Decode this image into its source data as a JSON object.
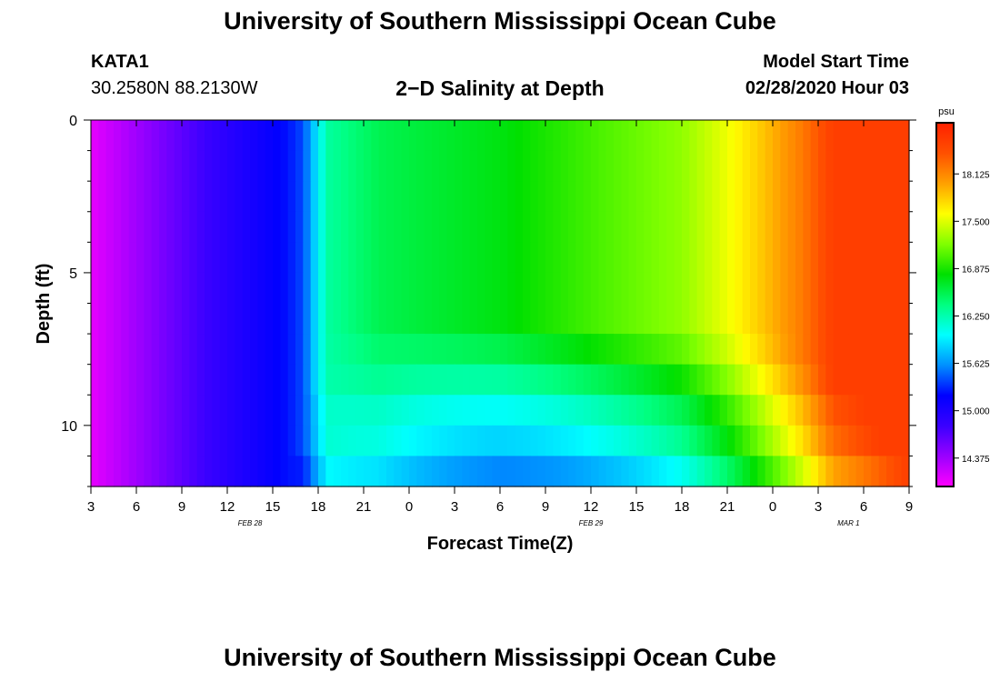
{
  "header": {
    "title": "University of Southern Mississippi Ocean Cube",
    "station": "KATA1",
    "coords": "30.2580N 88.2130W",
    "subtitle": "2−D Salinity at Depth",
    "model_label": "Model Start Time",
    "model_time": "02/28/2020 Hour 03"
  },
  "footer": {
    "title": "University of Southern Mississippi Ocean Cube"
  },
  "colors": {
    "scale": [
      "#ff00ff",
      "#9a00ff",
      "#3a00ff",
      "#0000ff",
      "#0090ff",
      "#00ffff",
      "#00ff80",
      "#00e000",
      "#80ff00",
      "#ffff00",
      "#ffa000",
      "#ff5000",
      "#ff2000"
    ]
  },
  "chart_data": {
    "type": "heatmap",
    "xlabel": "Forecast Time(Z)",
    "ylabel": "Depth (ft)",
    "x_tick_labels": [
      "3",
      "6",
      "9",
      "12",
      "15",
      "18",
      "21",
      "0",
      "3",
      "6",
      "9",
      "12",
      "15",
      "18",
      "21",
      "0",
      "3",
      "6",
      "9"
    ],
    "x_range_hours": [
      3,
      57
    ],
    "date_labels": [
      {
        "label": "FEB 28",
        "hour": 13.5
      },
      {
        "label": "FEB 29",
        "hour": 36
      },
      {
        "label": "MAR 1",
        "hour": 53
      }
    ],
    "y_ticks": [
      0,
      5,
      10
    ],
    "y_range": [
      0,
      12
    ],
    "colorbar": {
      "unit": "psu",
      "tick_labels": [
        "18.125",
        "17.500",
        "16.875",
        "16.250",
        "15.625",
        "15.000",
        "14.375"
      ],
      "range": [
        14.0,
        18.8
      ]
    },
    "depth_levels": [
      0,
      1,
      2,
      3,
      4,
      5,
      6,
      7,
      8,
      9,
      10,
      11
    ],
    "surface_profile": [
      {
        "hour": 3,
        "psu": 14.1
      },
      {
        "hour": 10,
        "psu": 14.75
      },
      {
        "hour": 16,
        "psu": 15.25
      },
      {
        "hour": 17,
        "psu": 15.4
      },
      {
        "hour": 18.6,
        "psu": 16.3
      },
      {
        "hour": 22,
        "psu": 16.55
      },
      {
        "hour": 30,
        "psu": 16.75
      },
      {
        "hour": 37,
        "psu": 17.05
      },
      {
        "hour": 42,
        "psu": 17.25
      },
      {
        "hour": 45,
        "psu": 17.55
      },
      {
        "hour": 47,
        "psu": 17.8
      },
      {
        "hour": 50,
        "psu": 18.2
      },
      {
        "hour": 52,
        "psu": 18.55
      },
      {
        "hour": 57,
        "psu": 18.55
      }
    ],
    "depth_offsets_psu": [
      {
        "depth": 7,
        "min_hour": 18,
        "max_hour": 50,
        "max_offset": -0.2
      },
      {
        "depth": 8,
        "min_hour": 18,
        "max_hour": 52,
        "max_offset": -0.5
      },
      {
        "depth": 9,
        "min_hour": 17,
        "max_hour": 54,
        "max_offset": -0.8
      },
      {
        "depth": 10,
        "min_hour": 17,
        "max_hour": 55,
        "max_offset": -1.0
      },
      {
        "depth": 11,
        "min_hour": 16,
        "max_hour": 57,
        "max_offset": -1.3
      }
    ]
  }
}
